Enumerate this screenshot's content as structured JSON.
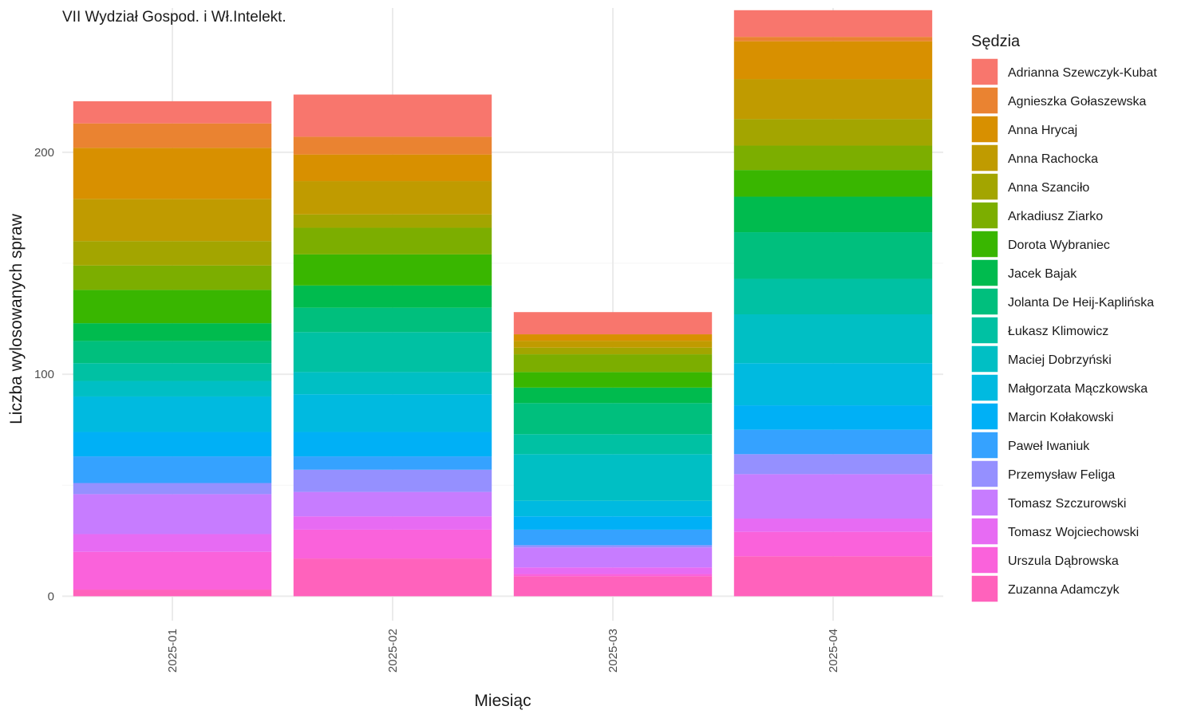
{
  "chart_data": {
    "type": "bar",
    "stacked": true,
    "title": "VII Wydział Gospod. i Wł.Intelekt.",
    "xlabel": "Miesiąc",
    "ylabel": "Liczba wylosowanych spraw",
    "categories": [
      "2025-01",
      "2025-02",
      "2025-03",
      "2025-04"
    ],
    "ylim": [
      -11,
      265
    ],
    "yticks": [
      0,
      100,
      200
    ],
    "grid": true,
    "legend": {
      "title": "Sędzia",
      "position": "right"
    },
    "series": [
      {
        "name": "Adrianna Szewczyk-Kubat",
        "color": "#F8766D",
        "values": [
          10,
          19,
          10,
          12
        ]
      },
      {
        "name": "Agnieszka Gołaszewska",
        "color": "#EA8331",
        "values": [
          11,
          8,
          0,
          2
        ]
      },
      {
        "name": "Anna Hrycaj",
        "color": "#D89000",
        "values": [
          23,
          12,
          3,
          17
        ]
      },
      {
        "name": "Anna Rachocka",
        "color": "#C09B00",
        "values": [
          19,
          15,
          3,
          18
        ]
      },
      {
        "name": "Anna Szanciło",
        "color": "#A3A500",
        "values": [
          11,
          6,
          3,
          12
        ]
      },
      {
        "name": "Arkadiusz Ziarko",
        "color": "#7CAE00",
        "values": [
          11,
          12,
          8,
          11
        ]
      },
      {
        "name": "Dorota Wybraniec",
        "color": "#39B600",
        "values": [
          15,
          14,
          7,
          12
        ]
      },
      {
        "name": "Jacek Bajak",
        "color": "#00BB4E",
        "values": [
          8,
          10,
          7,
          16
        ]
      },
      {
        "name": "Jolanta De Heij-Kaplińska",
        "color": "#00BF7D",
        "values": [
          10,
          11,
          14,
          21
        ]
      },
      {
        "name": "Łukasz Klimowicz",
        "color": "#00C1A3",
        "values": [
          8,
          18,
          9,
          16
        ]
      },
      {
        "name": "Maciej Dobrzyński",
        "color": "#00BFC4",
        "values": [
          7,
          10,
          21,
          22
        ]
      },
      {
        "name": "Małgorzata Mączkowska",
        "color": "#00BAE0",
        "values": [
          16,
          17,
          7,
          19
        ]
      },
      {
        "name": "Marcin Kołakowski",
        "color": "#00B0F6",
        "values": [
          11,
          11,
          6,
          11
        ]
      },
      {
        "name": "Paweł Iwaniuk",
        "color": "#35A2FF",
        "values": [
          12,
          6,
          7,
          11
        ]
      },
      {
        "name": "Przemysław Feliga",
        "color": "#9590FF",
        "values": [
          5,
          10,
          1,
          9
        ]
      },
      {
        "name": "Tomasz Szczurowski",
        "color": "#C77CFF",
        "values": [
          18,
          11,
          9,
          20
        ]
      },
      {
        "name": "Tomasz Wojciechowski",
        "color": "#E76BF3",
        "values": [
          8,
          6,
          3,
          6
        ]
      },
      {
        "name": "Urszula Dąbrowska",
        "color": "#FA62DB",
        "values": [
          17,
          13,
          1,
          11
        ]
      },
      {
        "name": "Zuzanna Adamczyk",
        "color": "#FF62BC",
        "values": [
          3,
          17,
          9,
          18
        ]
      }
    ]
  }
}
